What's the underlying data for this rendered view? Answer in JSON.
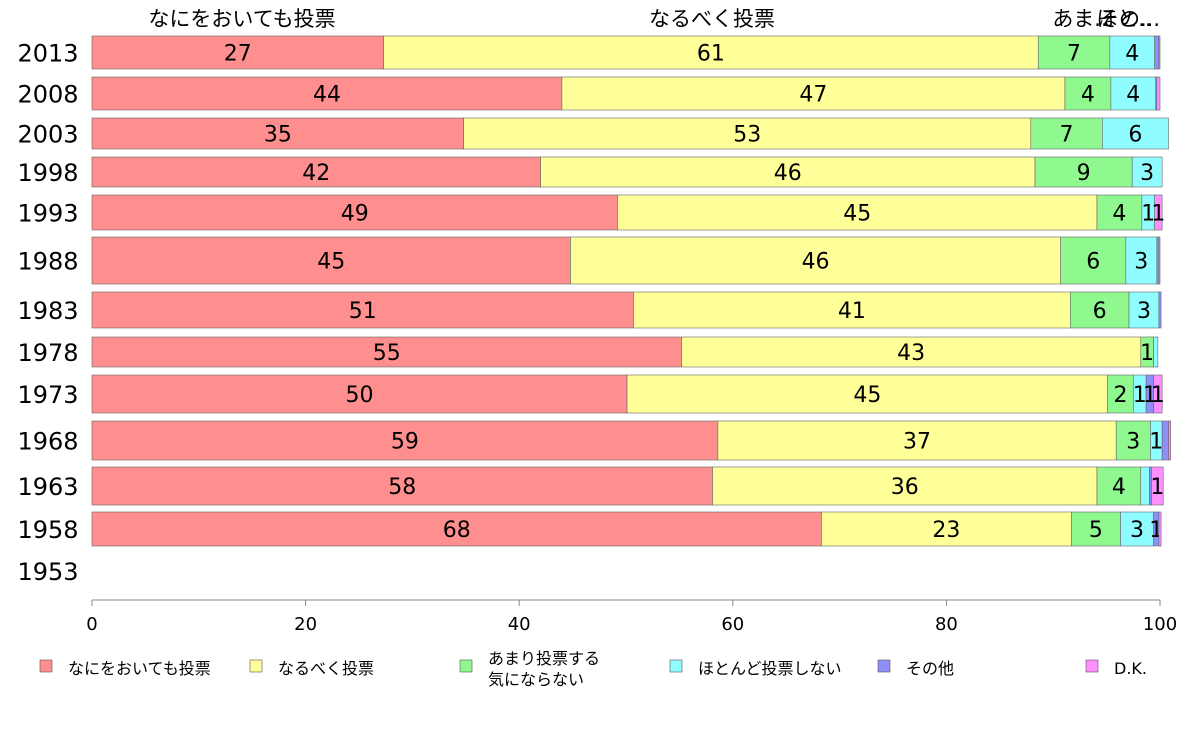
{
  "chart_data": {
    "type": "bar",
    "orientation": "horizontal",
    "stacked": true,
    "xlim": [
      0,
      100
    ],
    "x_ticks": [
      0,
      20,
      40,
      60,
      80,
      100
    ],
    "categories": [
      "2013",
      "2008",
      "2003",
      "1998",
      "1993",
      "1988",
      "1983",
      "1978",
      "1973",
      "1968",
      "1963",
      "1958",
      "1953"
    ],
    "top_column_labels": [
      "なにをおいても投票",
      "なるべく投票",
      "あま..",
      "ほと..",
      "その..."
    ],
    "series": [
      {
        "name": "なにをおいても投票",
        "color": "#ff8f8f",
        "values": [
          27.3,
          44,
          34.8,
          42,
          49.2,
          44.8,
          50.7,
          55.2,
          50.1,
          58.6,
          58.1,
          68.3,
          null
        ],
        "labels": [
          "27",
          "44",
          "35",
          "42",
          "49",
          "45",
          "51",
          "55",
          "50",
          "59",
          "58",
          "68",
          ""
        ]
      },
      {
        "name": "なるべく投票",
        "color": "#ffff99",
        "values": [
          61.3,
          47.1,
          53.1,
          46.3,
          44.9,
          45.9,
          40.9,
          43.0,
          45.0,
          37.3,
          36.0,
          23.4,
          null
        ],
        "labels": [
          "61",
          "47",
          "53",
          "46",
          "45",
          "46",
          "41",
          "43",
          "45",
          "37",
          "36",
          "23",
          ""
        ]
      },
      {
        "name": "あまり投票する気にならない",
        "color": "#8ff98f",
        "values": [
          6.7,
          4.3,
          6.7,
          9.1,
          4.2,
          6.1,
          5.5,
          1.2,
          2.4,
          3.2,
          4.1,
          4.6,
          null
        ],
        "labels": [
          "7",
          "4",
          "7",
          "9",
          "4",
          "6",
          "6",
          "1",
          "2",
          "3",
          "4",
          "5",
          ""
        ]
      },
      {
        "name": "ほとんど投票しない",
        "color": "#8ffcff",
        "values": [
          4.2,
          4.2,
          6.2,
          2.8,
          1.2,
          2.9,
          2.8,
          0.4,
          1.2,
          1.1,
          0.8,
          3.1,
          null
        ],
        "labels": [
          "4",
          "4",
          "6",
          "3",
          "1",
          "3",
          "3",
          "",
          "1",
          "1",
          "",
          "3",
          ""
        ]
      },
      {
        "name": "その他",
        "color": "#8f8ff9",
        "values": [
          0.4,
          0.1,
          0,
          0,
          0,
          0.2,
          0.2,
          0,
          0.7,
          0.6,
          0.2,
          0.5,
          null
        ],
        "labels": [
          "",
          "",
          "",
          "",
          "",
          "",
          "",
          "",
          "1",
          "",
          "",
          "1",
          ""
        ]
      },
      {
        "name": "D.K.",
        "color": "#ff8fff",
        "values": [
          0.1,
          0.3,
          0,
          0,
          0.7,
          0.1,
          0,
          0,
          0.8,
          0.2,
          1.1,
          0.2,
          null
        ],
        "labels": [
          "",
          "",
          "",
          "",
          "1",
          "",
          "",
          "",
          "1",
          "",
          "1",
          "",
          ""
        ]
      }
    ],
    "legend": {
      "placement": "bottom",
      "items": [
        {
          "label_lines": [
            "なにをおいても投票"
          ],
          "color": "#ff8f8f"
        },
        {
          "label_lines": [
            "なるべく投票"
          ],
          "color": "#ffff99"
        },
        {
          "label_lines": [
            "あまり投票する",
            "気にならない"
          ],
          "color": "#8ff98f"
        },
        {
          "label_lines": [
            "ほとんど投票しない"
          ],
          "color": "#8ffcff"
        },
        {
          "label_lines": [
            "その他"
          ],
          "color": "#8f8ff9"
        },
        {
          "label_lines": [
            "D.K."
          ],
          "color": "#ff8fff"
        }
      ]
    },
    "grid": false
  }
}
